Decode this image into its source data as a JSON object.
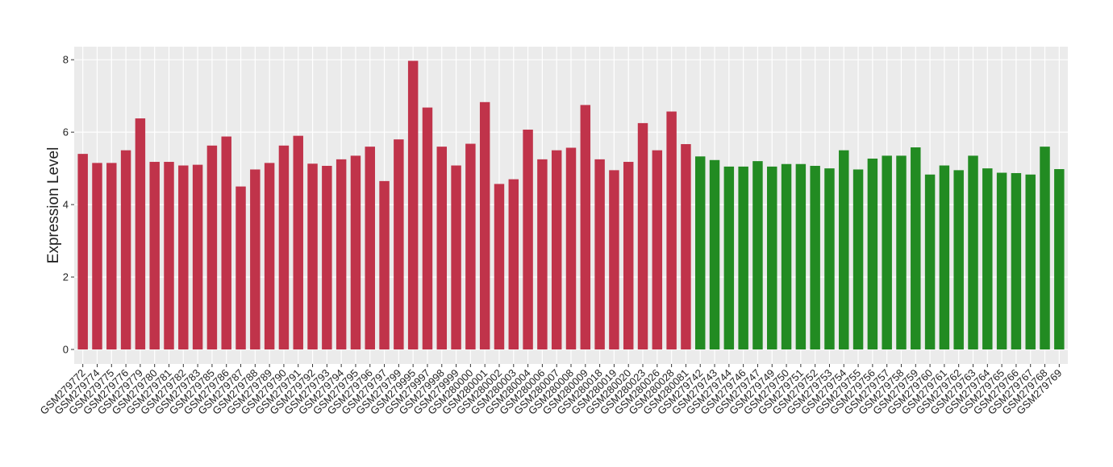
{
  "chart_data": {
    "type": "bar",
    "y_label": "Expression Level",
    "categories": [
      "GSM279772",
      "GSM279774",
      "GSM279775",
      "GSM279776",
      "GSM279779",
      "GSM279780",
      "GSM279781",
      "GSM279782",
      "GSM279783",
      "GSM279785",
      "GSM279786",
      "GSM279787",
      "GSM279788",
      "GSM279789",
      "GSM279790",
      "GSM279791",
      "GSM279792",
      "GSM279793",
      "GSM279794",
      "GSM279795",
      "GSM279796",
      "GSM279797",
      "GSM279799",
      "GSM279995",
      "GSM279997",
      "GSM279998",
      "GSM279999",
      "GSM280000",
      "GSM280001",
      "GSM280002",
      "GSM280003",
      "GSM280004",
      "GSM280006",
      "GSM280007",
      "GSM280008",
      "GSM280009",
      "GSM280018",
      "GSM280019",
      "GSM280020",
      "GSM280023",
      "GSM280026",
      "GSM280028",
      "GSM280081",
      "GSM279742",
      "GSM279743",
      "GSM279744",
      "GSM279746",
      "GSM279747",
      "GSM279749",
      "GSM279750",
      "GSM279751",
      "GSM279752",
      "GSM279753",
      "GSM279754",
      "GSM279755",
      "GSM279756",
      "GSM279757",
      "GSM279758",
      "GSM279759",
      "GSM279760",
      "GSM279761",
      "GSM279762",
      "GSM279763",
      "GSM279764",
      "GSM279765",
      "GSM279766",
      "GSM279767",
      "GSM279768",
      "GSM279769"
    ],
    "values": [
      5.4,
      5.15,
      5.15,
      5.5,
      6.38,
      5.18,
      5.18,
      5.08,
      5.1,
      5.63,
      5.88,
      4.5,
      4.97,
      5.15,
      5.63,
      5.9,
      5.13,
      5.07,
      5.25,
      5.35,
      5.6,
      4.65,
      5.8,
      7.97,
      6.68,
      5.6,
      5.08,
      5.68,
      6.83,
      4.57,
      4.7,
      6.07,
      5.25,
      5.5,
      5.57,
      6.75,
      5.25,
      4.95,
      5.18,
      6.25,
      5.5,
      6.57,
      5.67,
      5.33,
      5.23,
      5.05,
      5.05,
      5.2,
      5.05,
      5.12,
      5.12,
      5.07,
      5.0,
      5.5,
      4.97,
      5.27,
      5.35,
      5.35,
      5.58,
      4.83,
      5.08,
      4.95,
      5.35,
      5.0,
      4.88,
      4.87,
      4.83,
      5.6,
      4.98
    ],
    "colors": [
      "#c0334a",
      "#c0334a",
      "#c0334a",
      "#c0334a",
      "#c0334a",
      "#c0334a",
      "#c0334a",
      "#c0334a",
      "#c0334a",
      "#c0334a",
      "#c0334a",
      "#c0334a",
      "#c0334a",
      "#c0334a",
      "#c0334a",
      "#c0334a",
      "#c0334a",
      "#c0334a",
      "#c0334a",
      "#c0334a",
      "#c0334a",
      "#c0334a",
      "#c0334a",
      "#c0334a",
      "#c0334a",
      "#c0334a",
      "#c0334a",
      "#c0334a",
      "#c0334a",
      "#c0334a",
      "#c0334a",
      "#c0334a",
      "#c0334a",
      "#c0334a",
      "#c0334a",
      "#c0334a",
      "#c0334a",
      "#c0334a",
      "#c0334a",
      "#c0334a",
      "#c0334a",
      "#c0334a",
      "#c0334a",
      "#228b22",
      "#228b22",
      "#228b22",
      "#228b22",
      "#228b22",
      "#228b22",
      "#228b22",
      "#228b22",
      "#228b22",
      "#228b22",
      "#228b22",
      "#228b22",
      "#228b22",
      "#228b22",
      "#228b22",
      "#228b22",
      "#228b22",
      "#228b22",
      "#228b22",
      "#228b22",
      "#228b22",
      "#228b22",
      "#228b22",
      "#228b22",
      "#228b22",
      "#228b22"
    ],
    "ylim": [
      -0.4,
      8.36
    ],
    "yticks": [
      0,
      2,
      4,
      6,
      8
    ],
    "grid": true
  }
}
